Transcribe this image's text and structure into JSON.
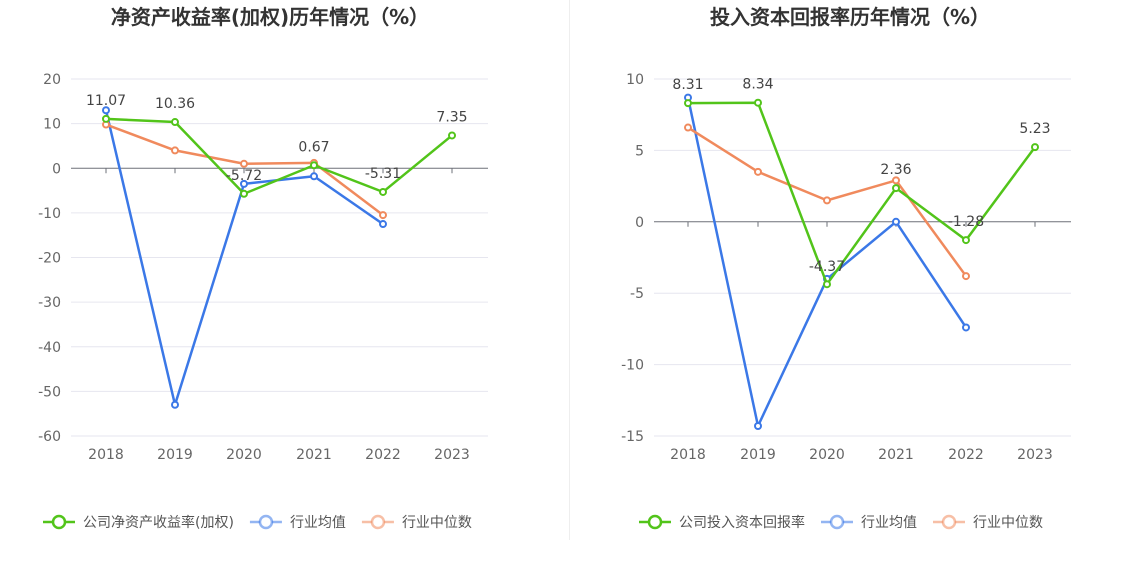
{
  "chart_data": [
    {
      "type": "line",
      "title": "净资产收益率(加权)历年情况（%）",
      "categories": [
        "2018",
        "2019",
        "2020",
        "2021",
        "2022",
        "2023"
      ],
      "ylim": [
        -60,
        20
      ],
      "yticks": [
        20,
        10,
        0,
        -10,
        -20,
        -30,
        -40,
        -50,
        -60
      ],
      "grid": true,
      "legend_position": "bottom",
      "series": [
        {
          "name": "公司净资产收益率(加权)",
          "color": "#52c41a",
          "values": [
            11.07,
            10.36,
            -5.72,
            0.67,
            -5.31,
            7.35
          ],
          "labels": [
            "11.07",
            "10.36",
            "-5.72",
            "0.67",
            "-5.31",
            "7.35"
          ]
        },
        {
          "name": "行业均值",
          "color": "#3b78e7",
          "values": [
            13.0,
            -53.0,
            -3.5,
            -1.8,
            -12.5,
            null
          ]
        },
        {
          "name": "行业中位数",
          "color": "#f08a5d",
          "values": [
            9.8,
            4.0,
            1.0,
            1.2,
            -10.5,
            null
          ]
        }
      ]
    },
    {
      "type": "line",
      "title": "投入资本回报率历年情况（%）",
      "categories": [
        "2018",
        "2019",
        "2020",
        "2021",
        "2022",
        "2023"
      ],
      "ylim": [
        -15,
        10
      ],
      "yticks": [
        10,
        5,
        0,
        -5,
        -10,
        -15
      ],
      "grid": true,
      "legend_position": "bottom",
      "series": [
        {
          "name": "公司投入资本回报率",
          "color": "#52c41a",
          "values": [
            8.31,
            8.34,
            -4.37,
            2.36,
            -1.28,
            5.23
          ],
          "labels": [
            "8.31",
            "8.34",
            "-4.37",
            "2.36",
            "-1.28",
            "5.23"
          ]
        },
        {
          "name": "行业均值",
          "color": "#3b78e7",
          "values": [
            8.7,
            -14.3,
            -4.0,
            0.0,
            -7.4,
            null
          ]
        },
        {
          "name": "行业中位数",
          "color": "#f08a5d",
          "values": [
            6.6,
            3.5,
            1.5,
            2.9,
            -3.8,
            null
          ]
        }
      ]
    }
  ]
}
